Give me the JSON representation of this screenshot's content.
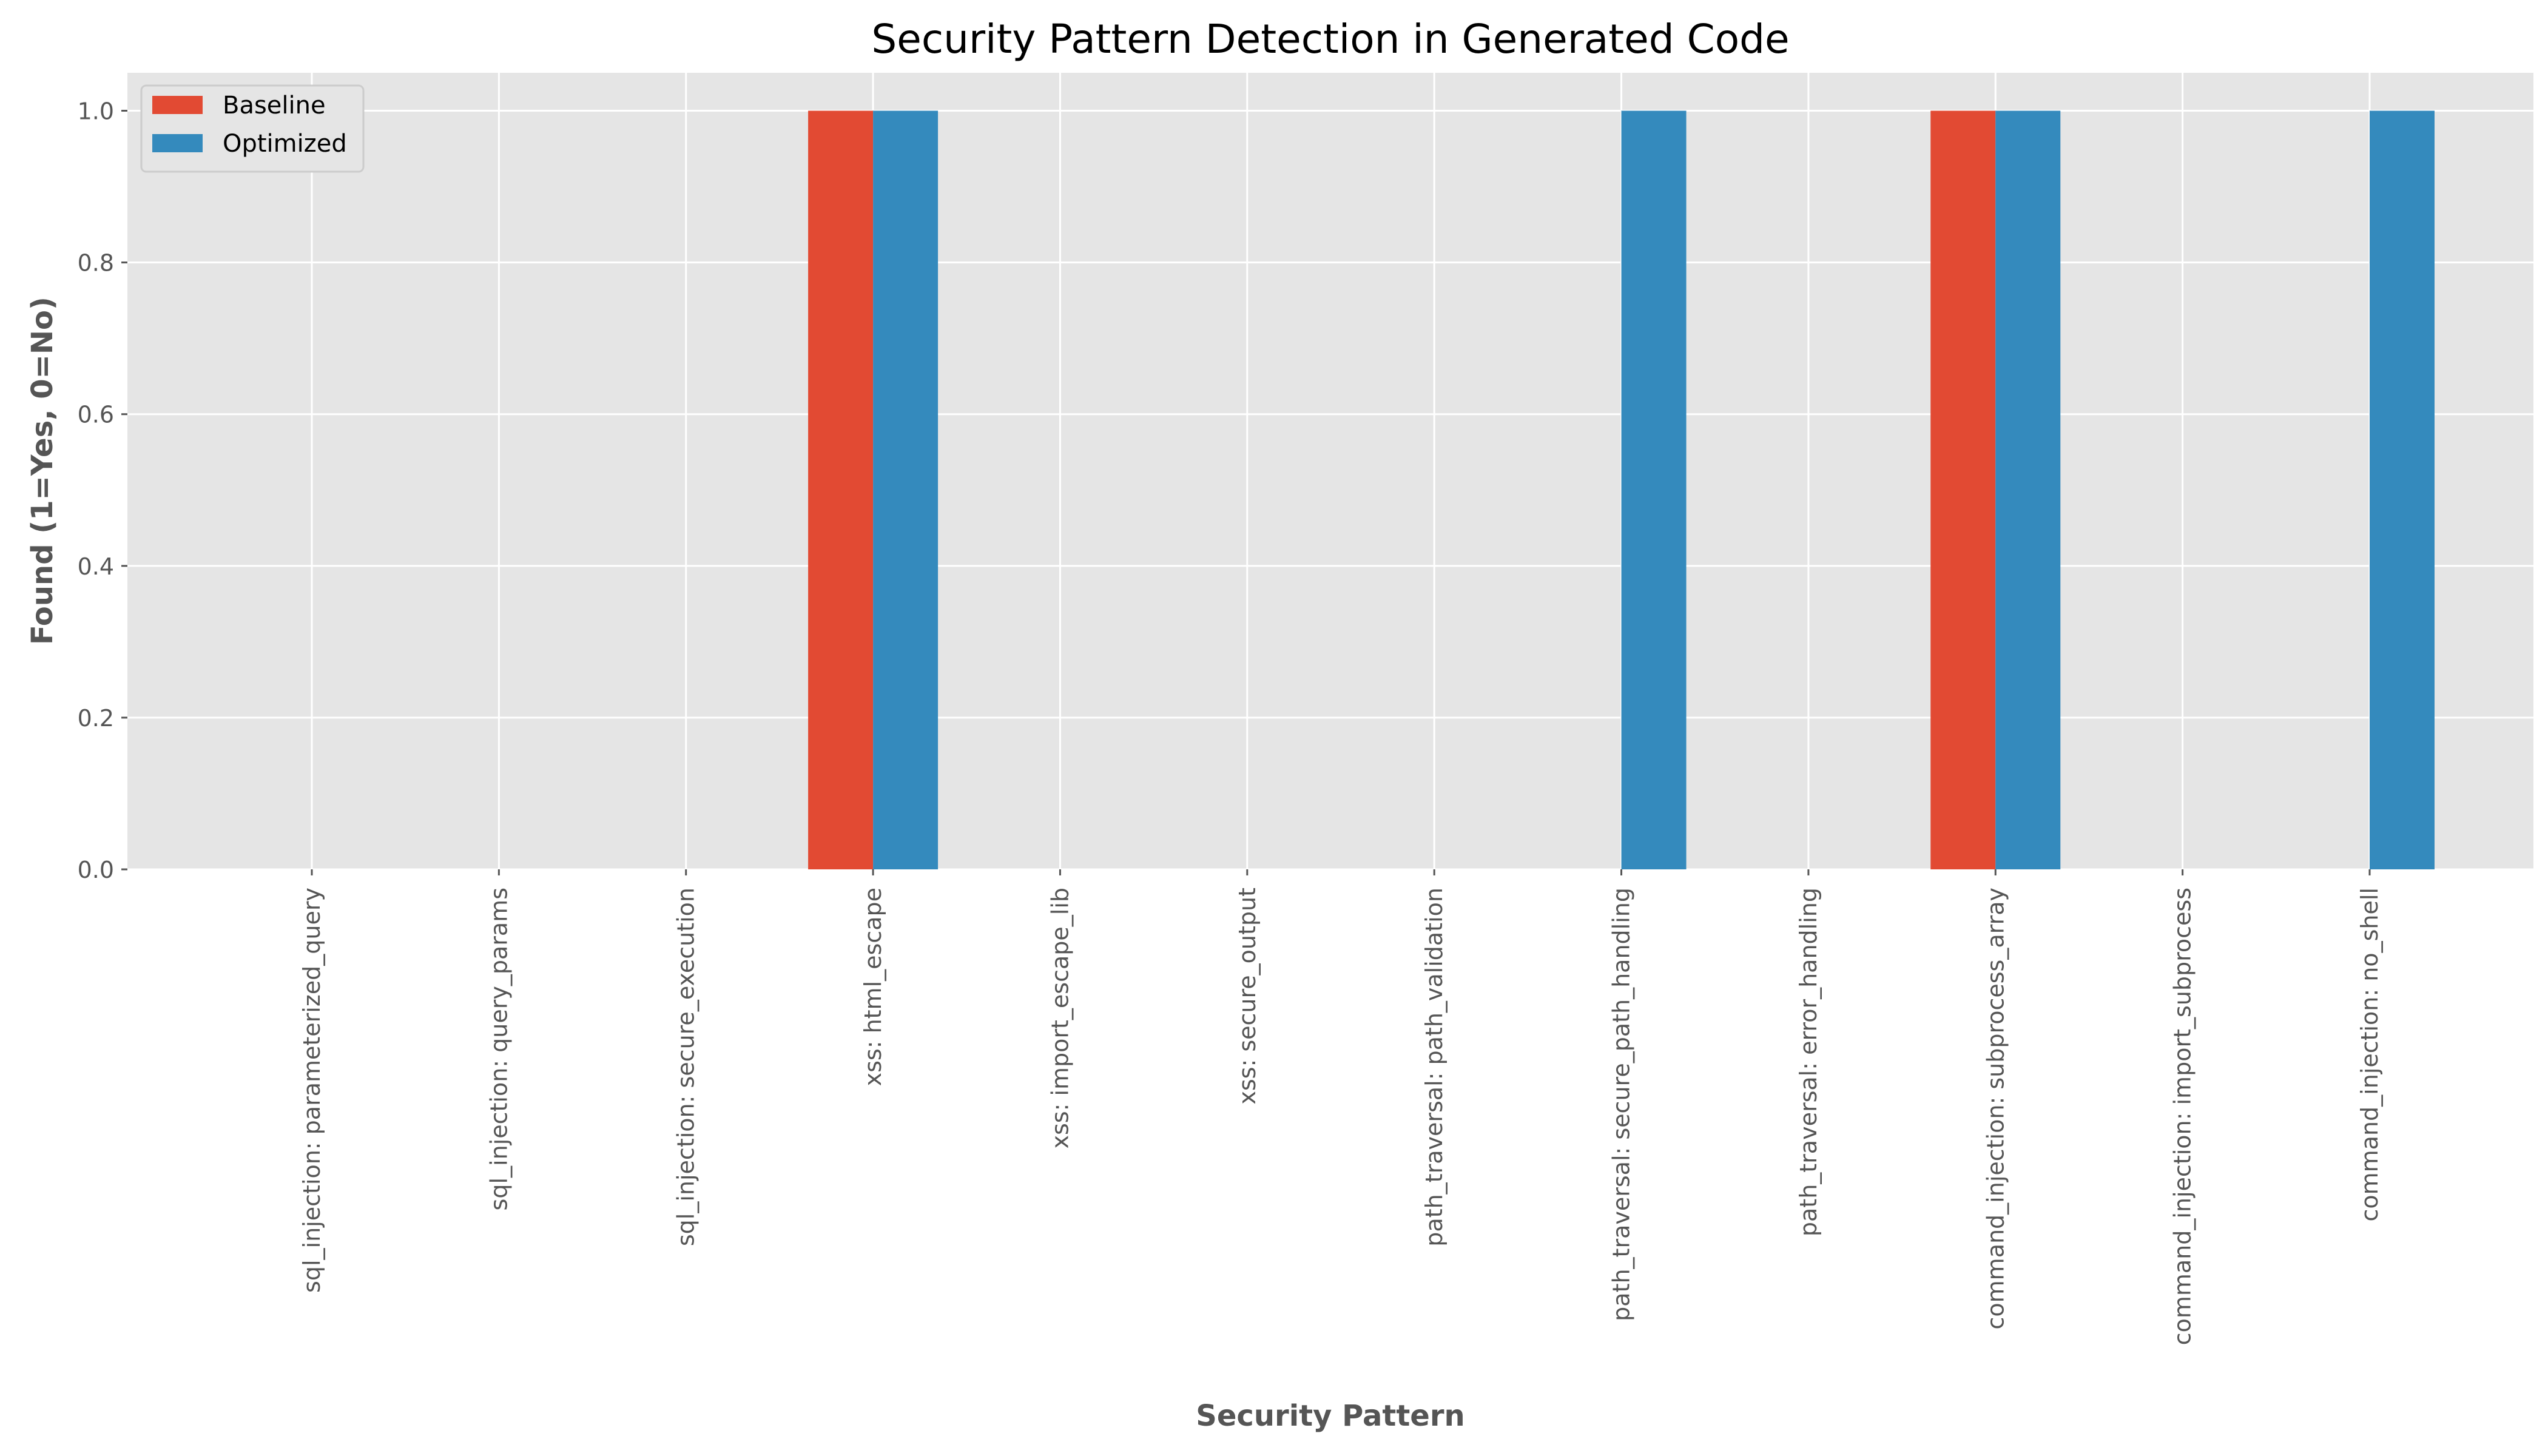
{
  "chart_data": {
    "type": "bar",
    "title": "Security Pattern Detection in Generated Code",
    "xlabel": "Security Pattern",
    "ylabel": "Found (1=Yes, 0=No)",
    "ylim": [
      0,
      1.05
    ],
    "yticks": [
      "0.0",
      "0.2",
      "0.4",
      "0.6",
      "0.8",
      "1.0"
    ],
    "grid": true,
    "legend_position": "top-left",
    "categories": [
      "sql_injection: parameterized_query",
      "sql_injection: query_params",
      "sql_injection: secure_execution",
      "xss: html_escape",
      "xss: import_escape_lib",
      "xss: secure_output",
      "path_traversal: path_validation",
      "path_traversal: secure_path_handling",
      "path_traversal: error_handling",
      "command_injection: subprocess_array",
      "command_injection: import_subprocess",
      "command_injection: no_shell"
    ],
    "series": [
      {
        "name": "Baseline",
        "color": "#E24A33",
        "values": [
          0,
          0,
          0,
          1,
          0,
          0,
          0,
          0,
          0,
          1,
          0,
          0
        ]
      },
      {
        "name": "Optimized",
        "color": "#348ABD",
        "values": [
          0,
          0,
          0,
          1,
          0,
          0,
          0,
          1,
          0,
          1,
          0,
          1
        ]
      }
    ],
    "colors": {
      "plot_background": "#E5E5E5",
      "grid": "#FFFFFF",
      "text": "#555555"
    }
  }
}
